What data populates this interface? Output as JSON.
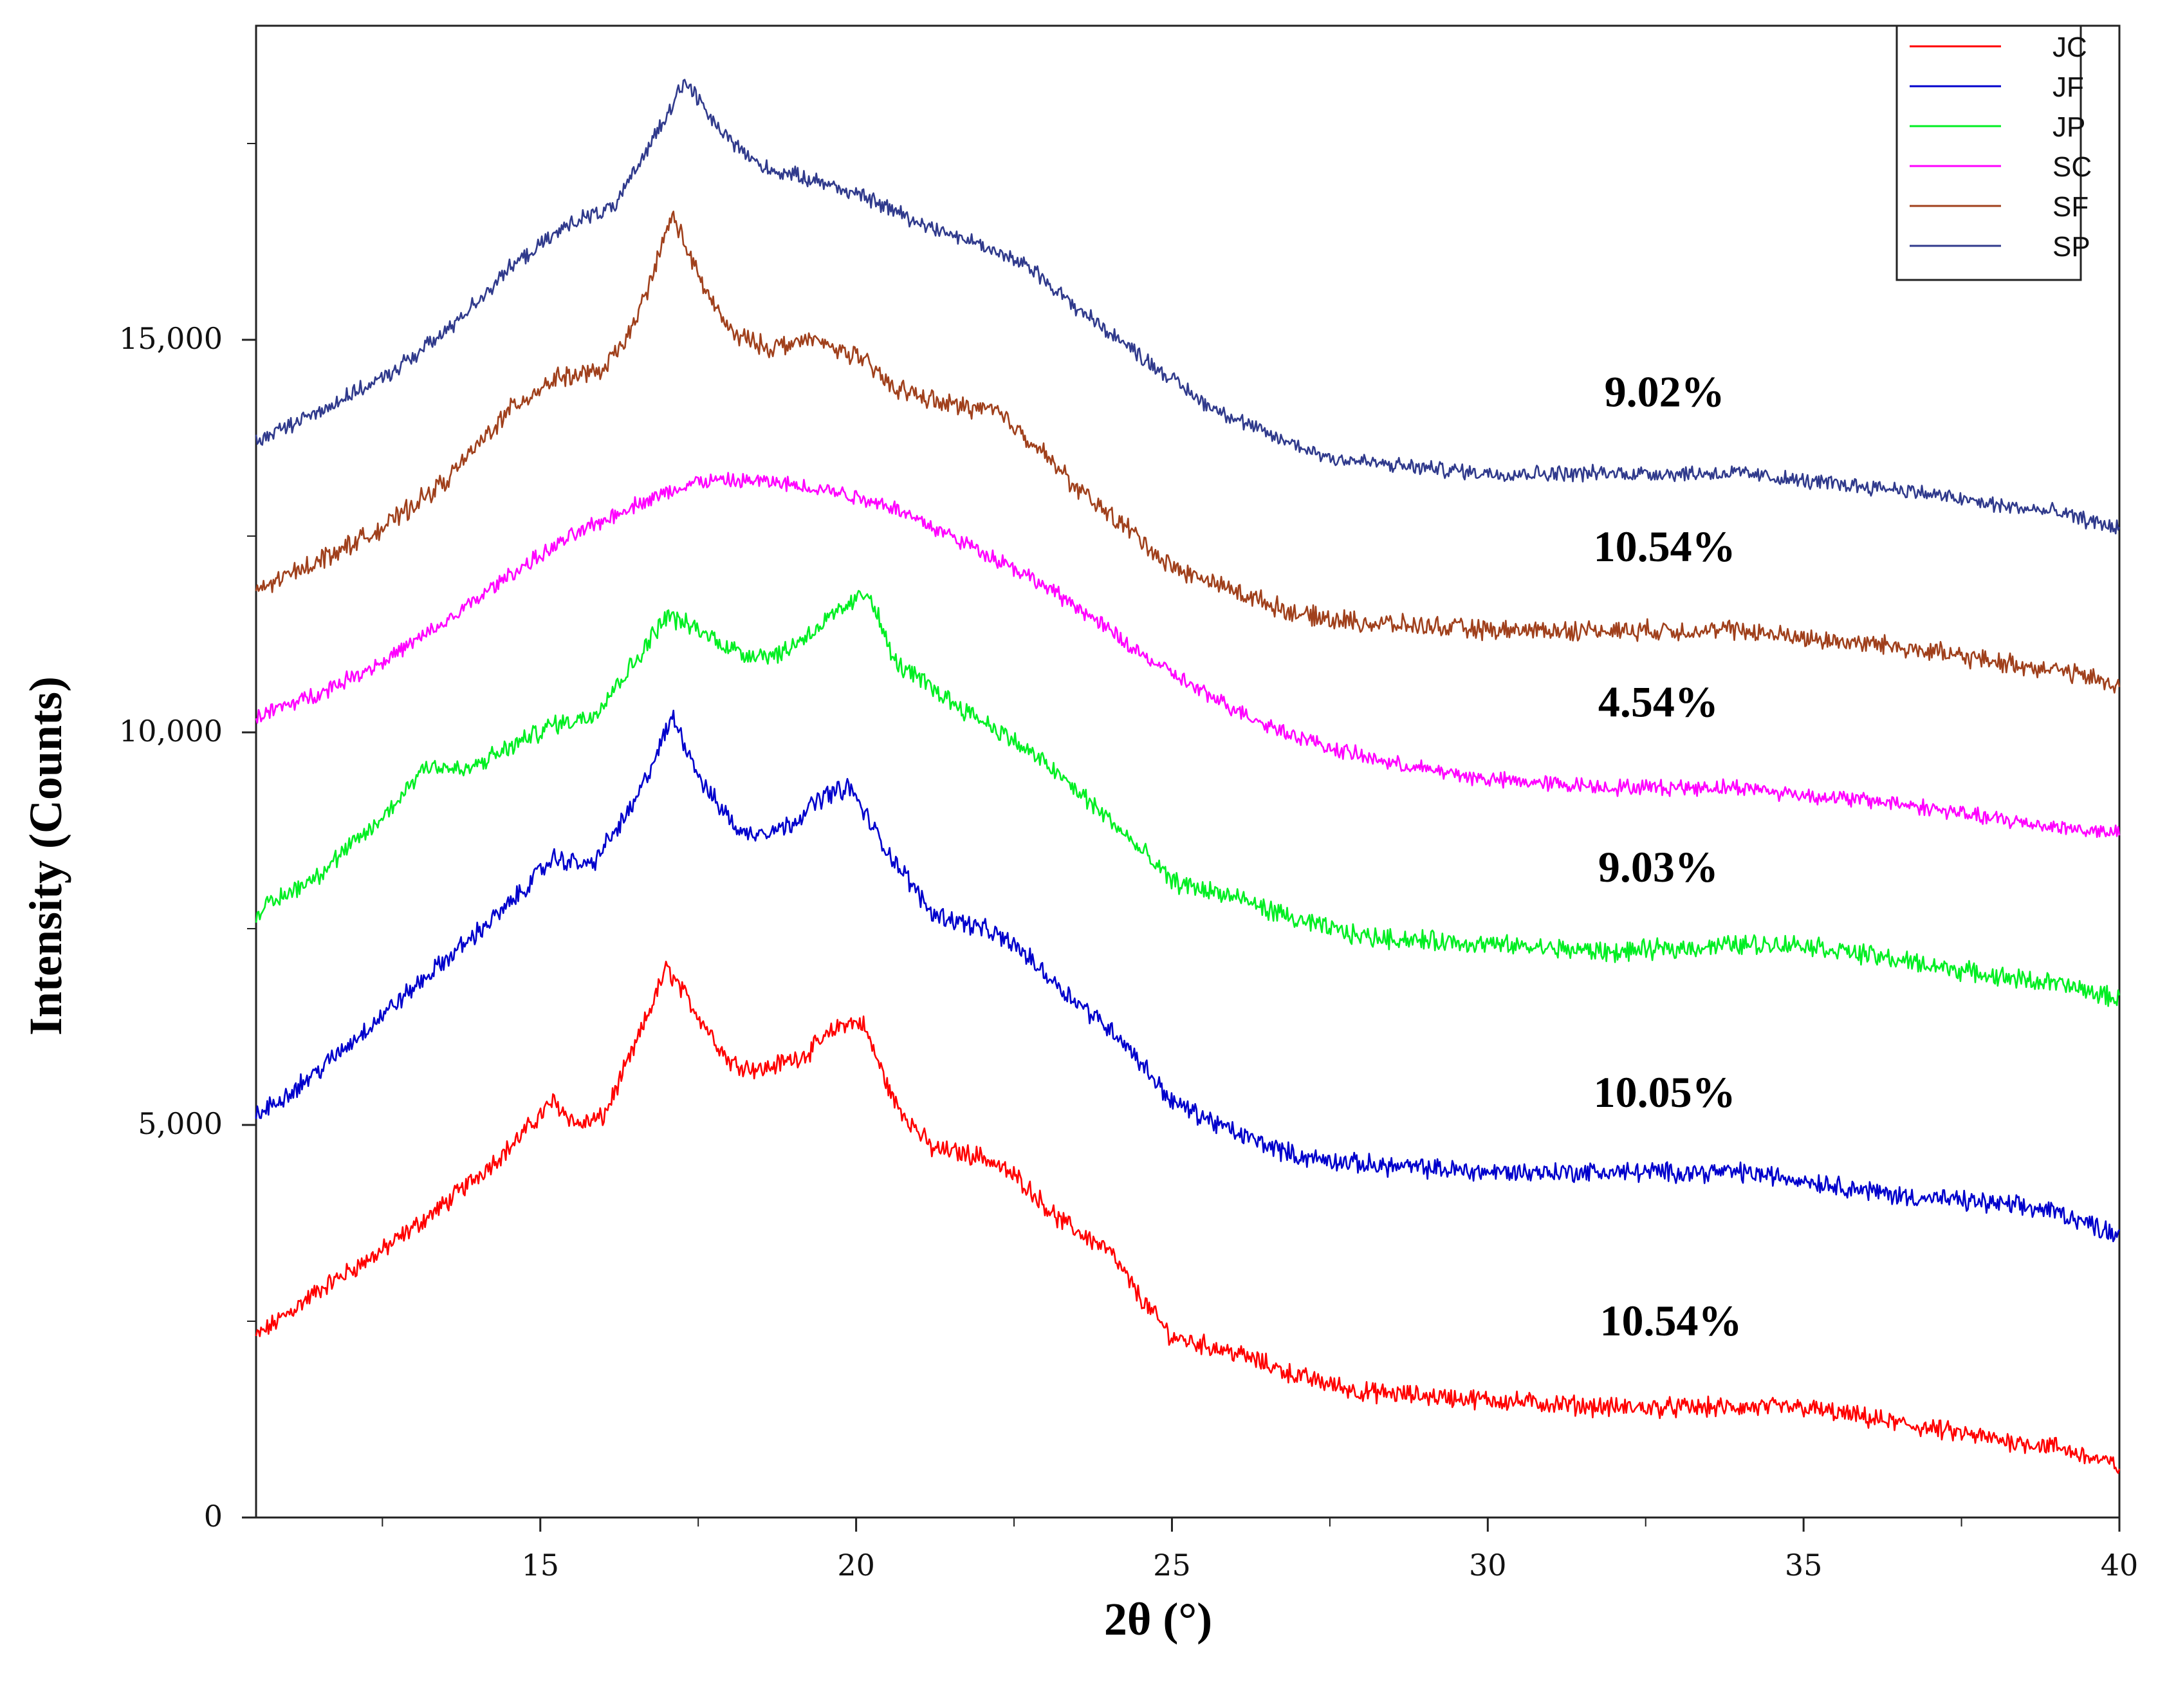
{
  "chart_data": {
    "type": "line",
    "title": "",
    "xlabel": "2θ (°)",
    "ylabel": "Intensity (Counts)",
    "xlim": [
      10.5,
      40
    ],
    "ylim": [
      0,
      19000
    ],
    "x_ticks": [
      15,
      20,
      25,
      30,
      35,
      40
    ],
    "x_tick_labels": [
      "15",
      "20",
      "25",
      "30",
      "35",
      "40"
    ],
    "y_ticks": [
      0,
      5000,
      10000,
      15000
    ],
    "y_tick_labels": [
      "0",
      "5,000",
      "10,000",
      "15,000"
    ],
    "legend": [
      "JC",
      "JF",
      "JP",
      "SC",
      "SF",
      "SP"
    ],
    "legend_position": "top-right",
    "series": [
      {
        "name": "JC",
        "color": "#ff0000",
        "noise": 100,
        "points": [
          [
            10.5,
            2300
          ],
          [
            11.5,
            2900
          ],
          [
            12.5,
            3400
          ],
          [
            13.5,
            4000
          ],
          [
            14.5,
            4700
          ],
          [
            15.2,
            5300
          ],
          [
            15.6,
            5000
          ],
          [
            16.0,
            5100
          ],
          [
            16.5,
            6000
          ],
          [
            17.0,
            7000
          ],
          [
            17.5,
            6400
          ],
          [
            18.0,
            5800
          ],
          [
            18.5,
            5700
          ],
          [
            19.2,
            5900
          ],
          [
            19.8,
            6300
          ],
          [
            20.1,
            6300
          ],
          [
            20.6,
            5300
          ],
          [
            21.2,
            4700
          ],
          [
            22.0,
            4600
          ],
          [
            22.6,
            4300
          ],
          [
            23.2,
            3800
          ],
          [
            24.0,
            3400
          ],
          [
            24.5,
            2800
          ],
          [
            25.0,
            2300
          ],
          [
            26.0,
            2100
          ],
          [
            27.0,
            1800
          ],
          [
            28.0,
            1600
          ],
          [
            30.0,
            1500
          ],
          [
            32.0,
            1400
          ],
          [
            34.0,
            1400
          ],
          [
            35.0,
            1400
          ],
          [
            36.5,
            1200
          ],
          [
            38.0,
            1000
          ],
          [
            39.0,
            900
          ],
          [
            40.0,
            650
          ]
        ]
      },
      {
        "name": "JF",
        "color": "#0000cc",
        "noise": 100,
        "points": [
          [
            10.5,
            5100
          ],
          [
            11.5,
            5700
          ],
          [
            12.5,
            6400
          ],
          [
            13.5,
            7100
          ],
          [
            14.5,
            7800
          ],
          [
            15.2,
            8400
          ],
          [
            15.8,
            8300
          ],
          [
            16.5,
            9100
          ],
          [
            17.1,
            10200
          ],
          [
            17.6,
            9300
          ],
          [
            18.2,
            8700
          ],
          [
            18.9,
            8800
          ],
          [
            19.5,
            9200
          ],
          [
            19.9,
            9300
          ],
          [
            20.4,
            8600
          ],
          [
            21.2,
            7700
          ],
          [
            22.0,
            7500
          ],
          [
            22.5,
            7300
          ],
          [
            23.3,
            6700
          ],
          [
            24.2,
            6100
          ],
          [
            24.6,
            5700
          ],
          [
            25.0,
            5300
          ],
          [
            26.0,
            4900
          ],
          [
            27.0,
            4600
          ],
          [
            28.0,
            4500
          ],
          [
            30.0,
            4400
          ],
          [
            32.0,
            4400
          ],
          [
            34.0,
            4400
          ],
          [
            35.0,
            4300
          ],
          [
            36.5,
            4100
          ],
          [
            38.0,
            4000
          ],
          [
            39.0,
            3900
          ],
          [
            40.0,
            3600
          ]
        ]
      },
      {
        "name": "JP",
        "color": "#00ee22",
        "noise": 100,
        "points": [
          [
            10.5,
            7700
          ],
          [
            11.5,
            8200
          ],
          [
            12.5,
            8900
          ],
          [
            13.2,
            9600
          ],
          [
            13.8,
            9500
          ],
          [
            14.5,
            9800
          ],
          [
            15.2,
            10100
          ],
          [
            15.8,
            10200
          ],
          [
            16.5,
            10900
          ],
          [
            17.0,
            11500
          ],
          [
            17.5,
            11300
          ],
          [
            18.2,
            11000
          ],
          [
            18.8,
            11000
          ],
          [
            19.5,
            11400
          ],
          [
            20.2,
            11800
          ],
          [
            20.6,
            10900
          ],
          [
            21.5,
            10400
          ],
          [
            22.3,
            10000
          ],
          [
            23.0,
            9600
          ],
          [
            24.0,
            8900
          ],
          [
            25.0,
            8100
          ],
          [
            26.0,
            7900
          ],
          [
            27.0,
            7600
          ],
          [
            28.0,
            7400
          ],
          [
            30.0,
            7300
          ],
          [
            32.0,
            7200
          ],
          [
            34.0,
            7300
          ],
          [
            35.0,
            7300
          ],
          [
            36.5,
            7100
          ],
          [
            38.0,
            6900
          ],
          [
            39.0,
            6800
          ],
          [
            40.0,
            6600
          ]
        ]
      },
      {
        "name": "SC",
        "color": "#ff00ff",
        "noise": 80,
        "points": [
          [
            10.5,
            10200
          ],
          [
            11.5,
            10500
          ],
          [
            12.5,
            10900
          ],
          [
            13.5,
            11400
          ],
          [
            14.5,
            12000
          ],
          [
            15.5,
            12500
          ],
          [
            16.5,
            12900
          ],
          [
            17.5,
            13200
          ],
          [
            18.5,
            13200
          ],
          [
            19.5,
            13100
          ],
          [
            20.5,
            12900
          ],
          [
            21.5,
            12500
          ],
          [
            22.5,
            12100
          ],
          [
            23.5,
            11600
          ],
          [
            24.5,
            11000
          ],
          [
            25.5,
            10500
          ],
          [
            26.5,
            10100
          ],
          [
            27.5,
            9800
          ],
          [
            28.5,
            9600
          ],
          [
            30.0,
            9400
          ],
          [
            32.0,
            9300
          ],
          [
            34.0,
            9300
          ],
          [
            35.0,
            9200
          ],
          [
            36.5,
            9100
          ],
          [
            38.0,
            8900
          ],
          [
            39.0,
            8800
          ],
          [
            40.0,
            8700
          ]
        ]
      },
      {
        "name": "SF",
        "color": "#a0401c",
        "noise": 100,
        "points": [
          [
            10.5,
            11800
          ],
          [
            11.5,
            12200
          ],
          [
            12.5,
            12600
          ],
          [
            13.5,
            13200
          ],
          [
            14.5,
            14100
          ],
          [
            15.2,
            14500
          ],
          [
            16.0,
            14600
          ],
          [
            16.5,
            15200
          ],
          [
            17.1,
            16600
          ],
          [
            17.5,
            15800
          ],
          [
            18.0,
            15100
          ],
          [
            18.6,
            14900
          ],
          [
            19.3,
            15000
          ],
          [
            20.0,
            14800
          ],
          [
            20.6,
            14400
          ],
          [
            21.3,
            14200
          ],
          [
            22.2,
            14100
          ],
          [
            22.8,
            13700
          ],
          [
            23.5,
            13100
          ],
          [
            24.3,
            12600
          ],
          [
            25.0,
            12100
          ],
          [
            26.0,
            11800
          ],
          [
            27.0,
            11500
          ],
          [
            28.0,
            11400
          ],
          [
            30.0,
            11300
          ],
          [
            32.0,
            11300
          ],
          [
            34.0,
            11300
          ],
          [
            35.0,
            11200
          ],
          [
            36.5,
            11100
          ],
          [
            38.0,
            10900
          ],
          [
            39.0,
            10800
          ],
          [
            40.0,
            10600
          ]
        ]
      },
      {
        "name": "SP",
        "color": "#303a8c",
        "noise": 80,
        "points": [
          [
            10.5,
            13700
          ],
          [
            11.5,
            14100
          ],
          [
            12.5,
            14500
          ],
          [
            13.5,
            15100
          ],
          [
            14.5,
            15900
          ],
          [
            15.5,
            16500
          ],
          [
            16.2,
            16700
          ],
          [
            16.8,
            17600
          ],
          [
            17.3,
            18300
          ],
          [
            17.8,
            17700
          ],
          [
            18.5,
            17200
          ],
          [
            19.5,
            17000
          ],
          [
            20.2,
            16800
          ],
          [
            21.0,
            16500
          ],
          [
            22.0,
            16200
          ],
          [
            22.8,
            15900
          ],
          [
            23.5,
            15400
          ],
          [
            24.5,
            14800
          ],
          [
            25.5,
            14200
          ],
          [
            26.5,
            13800
          ],
          [
            27.5,
            13500
          ],
          [
            28.5,
            13400
          ],
          [
            30.0,
            13300
          ],
          [
            32.0,
            13300
          ],
          [
            34.0,
            13300
          ],
          [
            35.0,
            13200
          ],
          [
            36.5,
            13100
          ],
          [
            38.0,
            12900
          ],
          [
            39.0,
            12800
          ],
          [
            40.0,
            12600
          ]
        ]
      }
    ],
    "annotations": [
      {
        "text": "9.02%",
        "x": 32.8,
        "y": 14150
      },
      {
        "text": "10.54%",
        "x": 32.8,
        "y": 12180
      },
      {
        "text": "4.54%",
        "x": 32.7,
        "y": 10200
      },
      {
        "text": "9.03%",
        "x": 32.7,
        "y": 8100
      },
      {
        "text": "10.05%",
        "x": 32.8,
        "y": 5230
      },
      {
        "text": "10.54%",
        "x": 32.9,
        "y": 2320
      }
    ]
  }
}
